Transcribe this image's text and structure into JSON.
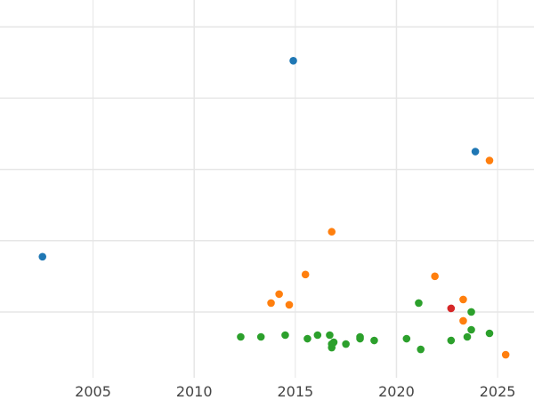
{
  "chart_data": {
    "type": "scatter",
    "title": "",
    "xlabel": "",
    "ylabel": "",
    "xlim": [
      2000.4,
      2026.8
    ],
    "ylim": [
      -6,
      100
    ],
    "x_ticks": [
      2005,
      2010,
      2015,
      2020,
      2025
    ],
    "x_tick_labels": [
      "2005",
      "2010",
      "2015",
      "2020",
      "2025"
    ],
    "y_gridlines": [
      0,
      20,
      40,
      60,
      80,
      100
    ],
    "y_tick_labels_visible": false,
    "grid": true,
    "legend": "none",
    "series": [
      {
        "color": "#1f77b4",
        "points": [
          {
            "x": 2002.5,
            "y": 15.5
          },
          {
            "x": 2014.9,
            "y": 70.5
          },
          {
            "x": 2023.9,
            "y": 45.0
          }
        ]
      },
      {
        "color": "#ff7f0e",
        "points": [
          {
            "x": 2013.8,
            "y": 2.5
          },
          {
            "x": 2014.2,
            "y": 5.0
          },
          {
            "x": 2014.7,
            "y": 2.0
          },
          {
            "x": 2015.5,
            "y": 10.5
          },
          {
            "x": 2016.8,
            "y": 22.5
          },
          {
            "x": 2021.9,
            "y": 10.0
          },
          {
            "x": 2023.3,
            "y": 3.5
          },
          {
            "x": 2023.3,
            "y": -2.5
          },
          {
            "x": 2024.6,
            "y": 42.5
          },
          {
            "x": 2025.4,
            "y": -12.0
          }
        ]
      },
      {
        "color": "#2ca02c",
        "points": [
          {
            "x": 2012.3,
            "y": -7.0
          },
          {
            "x": 2013.3,
            "y": -7.0
          },
          {
            "x": 2014.5,
            "y": -6.5
          },
          {
            "x": 2015.6,
            "y": -7.5
          },
          {
            "x": 2016.1,
            "y": -6.5
          },
          {
            "x": 2016.7,
            "y": -6.5
          },
          {
            "x": 2016.8,
            "y": -9.0
          },
          {
            "x": 2016.9,
            "y": -8.5
          },
          {
            "x": 2016.8,
            "y": -10.0
          },
          {
            "x": 2017.5,
            "y": -9.0
          },
          {
            "x": 2018.2,
            "y": -7.0
          },
          {
            "x": 2018.2,
            "y": -7.5
          },
          {
            "x": 2018.9,
            "y": -8.0
          },
          {
            "x": 2020.5,
            "y": -7.5
          },
          {
            "x": 2021.1,
            "y": 2.5
          },
          {
            "x": 2021.2,
            "y": -10.5
          },
          {
            "x": 2022.7,
            "y": -8.0
          },
          {
            "x": 2023.5,
            "y": -7.0
          },
          {
            "x": 2023.7,
            "y": 0.0
          },
          {
            "x": 2023.7,
            "y": -5.0
          },
          {
            "x": 2024.6,
            "y": -6.0
          }
        ]
      },
      {
        "color": "#d62728",
        "points": [
          {
            "x": 2022.7,
            "y": 1.0
          }
        ]
      }
    ]
  }
}
